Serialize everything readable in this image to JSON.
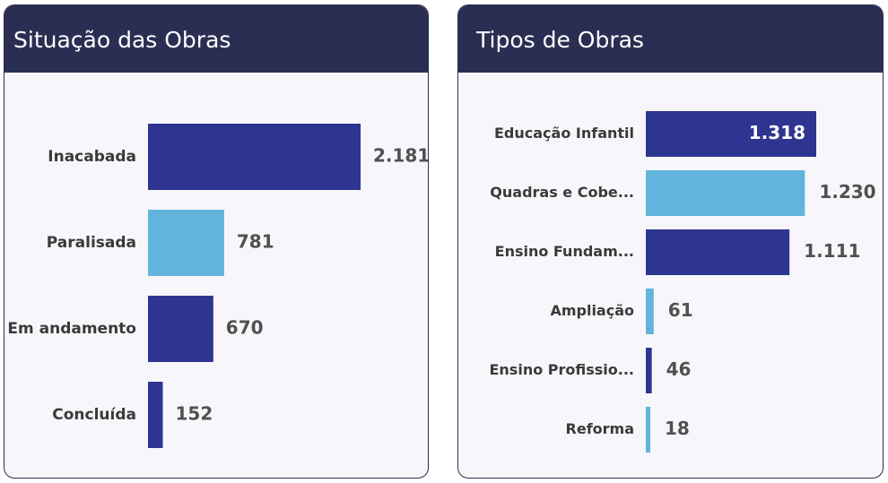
{
  "colors": {
    "dark_bar": "#2e3590",
    "light_bar": "#62b4dc",
    "header_bg": "#2a2e52"
  },
  "chart_data": [
    {
      "type": "bar",
      "orientation": "horizontal",
      "title": "Situação das Obras",
      "categories": [
        "Inacabada",
        "Paralisada",
        "Em andamento",
        "Concluída"
      ],
      "values": [
        2181,
        781,
        670,
        152
      ],
      "value_labels": [
        "2.181",
        "781",
        "670",
        "152"
      ],
      "bar_colors": [
        "#2e3590",
        "#62b4dc",
        "#2e3590",
        "#2e3590"
      ]
    },
    {
      "type": "bar",
      "orientation": "horizontal",
      "title": "Tipos de Obras",
      "categories": [
        "Educação Infantil",
        "Quadras e Cobe...",
        "Ensino Fundam...",
        "Ampliação",
        "Ensino Profissio...",
        "Reforma"
      ],
      "values": [
        1318,
        1230,
        1111,
        61,
        46,
        18
      ],
      "value_labels": [
        "1.318",
        "1.230",
        "1.111",
        "61",
        "46",
        "18"
      ],
      "bar_colors": [
        "#2e3590",
        "#62b4dc",
        "#2e3590",
        "#62b4dc",
        "#2e3590",
        "#62b4dc"
      ]
    }
  ]
}
